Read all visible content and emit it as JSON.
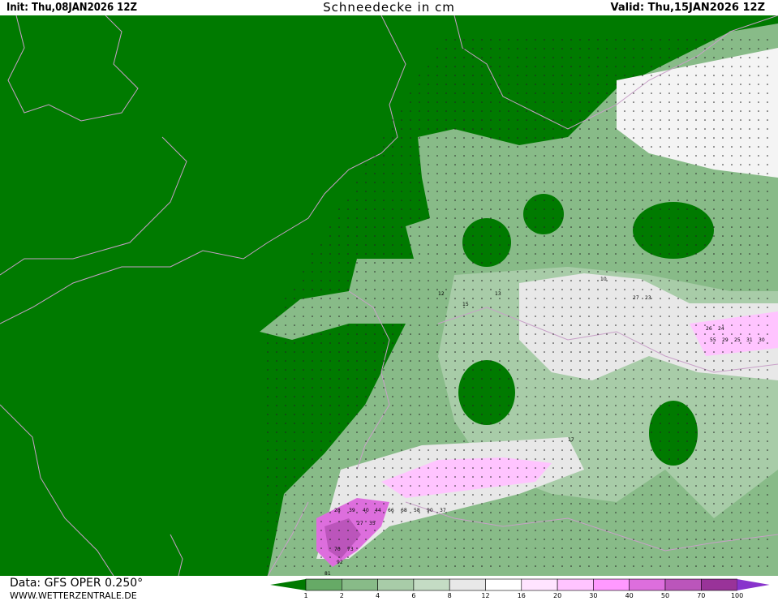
{
  "header": {
    "init": "Init: Thu,08JAN2026 12Z",
    "title": "Schneedecke in cm",
    "valid": "Valid: Thu,15JAN2026 12Z"
  },
  "footer": {
    "data_source": "Data: GFS OPER 0.250°",
    "website": "WWW.WETTERZENTRALE.DE"
  },
  "map": {
    "background_color": "#007a00",
    "border_color": "#c8a0c8",
    "sample_values": [
      "12",
      "15",
      "13",
      "17",
      "28",
      "39",
      "40",
      "44",
      "66",
      "68",
      "58",
      "90",
      "37",
      "27",
      "35",
      "70",
      "73",
      "81",
      "92",
      "55",
      "29",
      "25",
      "31",
      "30",
      "26",
      "24",
      "27",
      "23",
      "10"
    ]
  },
  "legend": {
    "ticks": [
      "1",
      "2",
      "4",
      "6",
      "8",
      "12",
      "16",
      "20",
      "30",
      "40",
      "50",
      "70",
      "100"
    ],
    "colors": [
      "#007a00",
      "#66aa66",
      "#88bb88",
      "#a8cca8",
      "#c4dcc4",
      "#e8e8e8",
      "#ffffff",
      "#ffe4ff",
      "#ffc4ff",
      "#ff99ff",
      "#dd6edd",
      "#bb55bb",
      "#993399",
      "#8833cc"
    ]
  }
}
